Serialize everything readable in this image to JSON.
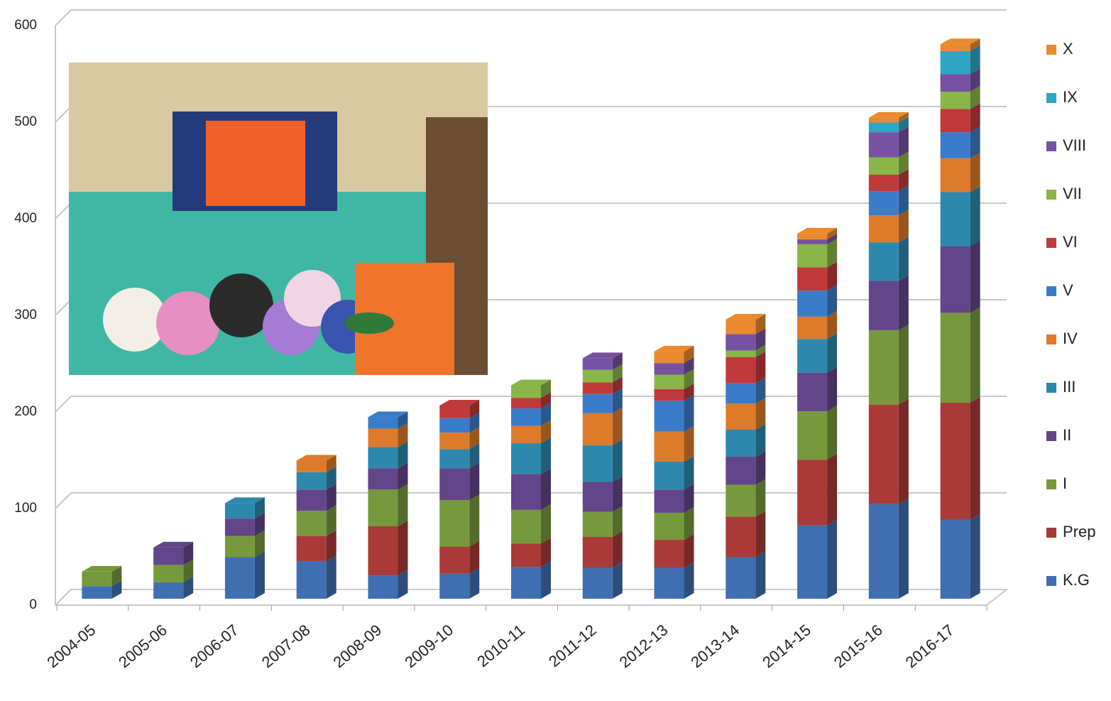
{
  "chart_data": {
    "type": "stacked-bar-3d",
    "categories": [
      "2004-05",
      "2005-06",
      "2006-07",
      "2007-08",
      "2008-09",
      "2009-10",
      "2010-11",
      "2011-12",
      "2012-13",
      "2013-14",
      "2014-15",
      "2015-16",
      "2016-17"
    ],
    "ylim": [
      0,
      600
    ],
    "yticks": [
      0,
      100,
      200,
      300,
      400,
      500,
      600
    ],
    "grid": true,
    "series": [
      {
        "name": "K.G",
        "color": "#3f6fb0",
        "values": [
          13,
          17,
          43,
          39,
          24,
          26,
          33,
          32,
          32,
          43,
          76,
          98,
          82
        ]
      },
      {
        "name": "Prep",
        "color": "#a93a37",
        "values": [
          0,
          0,
          0,
          26,
          51,
          28,
          24,
          32,
          29,
          42,
          68,
          103,
          121
        ]
      },
      {
        "name": "I",
        "color": "#77993d",
        "values": [
          15,
          18,
          22,
          26,
          38,
          48,
          35,
          26,
          28,
          33,
          50,
          77,
          93
        ]
      },
      {
        "name": "II",
        "color": "#634589",
        "values": [
          0,
          18,
          18,
          22,
          22,
          33,
          37,
          31,
          24,
          29,
          40,
          51,
          69
        ]
      },
      {
        "name": "III",
        "color": "#2e88ad",
        "values": [
          0,
          0,
          16,
          18,
          22,
          20,
          32,
          38,
          29,
          28,
          35,
          40,
          56
        ]
      },
      {
        "name": "IV",
        "color": "#dd7b2b",
        "values": [
          0,
          0,
          0,
          12,
          19,
          17,
          18,
          33,
          31,
          27,
          23,
          28,
          35
        ]
      },
      {
        "name": "V",
        "color": "#3b7cc9",
        "values": [
          0,
          0,
          0,
          0,
          12,
          15,
          18,
          20,
          32,
          21,
          27,
          25,
          27
        ]
      },
      {
        "name": "VI",
        "color": "#c03a3c",
        "values": [
          0,
          0,
          0,
          0,
          0,
          13,
          11,
          12,
          12,
          27,
          24,
          17,
          24
        ]
      },
      {
        "name": "VII",
        "color": "#8ab548",
        "values": [
          0,
          0,
          0,
          0,
          0,
          0,
          13,
          13,
          15,
          7,
          24,
          18,
          18
        ]
      },
      {
        "name": "VIII",
        "color": "#7752a0",
        "values": [
          0,
          0,
          0,
          0,
          0,
          0,
          0,
          12,
          12,
          17,
          5,
          26,
          18
        ]
      },
      {
        "name": "IX",
        "color": "#2fa6c6",
        "values": [
          0,
          0,
          0,
          0,
          0,
          0,
          0,
          0,
          0,
          0,
          0,
          10,
          24
        ]
      },
      {
        "name": "X",
        "color": "#ea8a2e",
        "values": [
          0,
          0,
          0,
          0,
          0,
          0,
          0,
          0,
          12,
          15,
          6,
          5,
          7
        ]
      }
    ]
  }
}
